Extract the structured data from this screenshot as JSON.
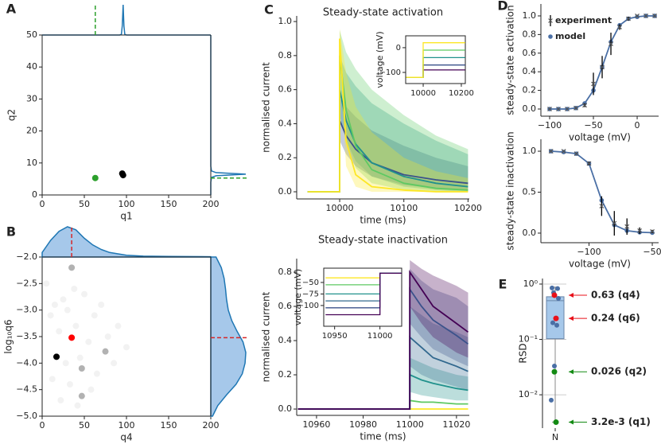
{
  "chart_data": [
    {
      "type": "scatter",
      "panel_label": "A",
      "xlabel": "q1",
      "ylabel": "q2",
      "xlim": [
        0,
        200
      ],
      "ylim": [
        0,
        50
      ],
      "xticks": [
        0,
        50,
        100,
        150,
        200
      ],
      "yticks": [
        0,
        10,
        20,
        30,
        40,
        50
      ],
      "series": [
        {
          "color": "#2ca02c",
          "opacity": 1,
          "x": [
            63
          ],
          "values": [
            5.3
          ]
        },
        {
          "color": "#000000",
          "opacity": 1,
          "x": [
            95,
            96
          ],
          "values": [
            6.7,
            6.2
          ]
        }
      ],
      "reference_x": 63,
      "reference_y": 5.3,
      "reference_color": "#2ca02c",
      "density_color": "#1f77b4",
      "density_fill": false,
      "top_density": {
        "x": [
          0,
          92,
          94,
          95,
          96,
          97,
          98,
          100,
          200
        ],
        "values": [
          0,
          0,
          0.02,
          0.3,
          1,
          0.3,
          0.02,
          0,
          0
        ],
        "lim": [
          0,
          1
        ]
      },
      "right_density": {
        "y": [
          0,
          4,
          5.5,
          6,
          6.5,
          7,
          7.5,
          9,
          50
        ],
        "values": [
          0,
          0,
          0.02,
          0.15,
          1,
          0.15,
          0.02,
          0,
          0
        ],
        "lim": [
          0,
          1
        ]
      }
    },
    {
      "type": "scatter",
      "panel_label": "B",
      "xlabel": "q4",
      "ylabel": "log₁₀q6",
      "xlim": [
        0,
        200
      ],
      "ylim": [
        -5,
        -2
      ],
      "xticks": [
        0,
        50,
        100,
        150,
        200
      ],
      "yticks": [
        {
          "value": -5,
          "label": "−5.0"
        },
        {
          "value": -4.5,
          "label": "−4.5"
        },
        {
          "value": -4,
          "label": "−4.0"
        },
        {
          "value": -3.5,
          "label": "−3.5"
        },
        {
          "value": -3,
          "label": "−3.0"
        },
        {
          "value": -2.5,
          "label": "−2.5"
        },
        {
          "value": -2,
          "label": "−2.0"
        }
      ],
      "series": [
        {
          "color": "#000000",
          "opacity": 0.05,
          "x": [
            5,
            10,
            12,
            15,
            20,
            22,
            25,
            28,
            30,
            33,
            38,
            40,
            42,
            45,
            50,
            55,
            58,
            62,
            65,
            70,
            78,
            85,
            90,
            100
          ],
          "values": [
            -2.5,
            -3.1,
            -4.3,
            -2.9,
            -3.4,
            -4.7,
            -2.8,
            -4.0,
            -3.0,
            -4.4,
            -2.6,
            -3.3,
            -4.8,
            -3.9,
            -2.7,
            -3.6,
            -4.5,
            -3.1,
            -4.2,
            -2.9,
            -3.5,
            -4.0,
            -3.3,
            -3.7
          ]
        },
        {
          "color": "#000000",
          "opacity": 0.3,
          "x": [
            35,
            75,
            47,
            47
          ],
          "values": [
            -2.2,
            -3.78,
            -4.62,
            -4.1
          ]
        },
        {
          "color": "#000000",
          "opacity": 1,
          "x": [
            17
          ],
          "values": [
            -3.88
          ]
        },
        {
          "color": "#ff0000",
          "opacity": 1,
          "x": [
            35
          ],
          "values": [
            -3.52
          ]
        }
      ],
      "reference_x": 35,
      "reference_y": -3.52,
      "reference_color": "#d62728",
      "density_color": "#1f77b4",
      "density_fill": true,
      "density_fill_color": "#a6c8ea",
      "top_density": {
        "x": [
          0,
          10,
          20,
          30,
          40,
          50,
          60,
          70,
          80,
          100,
          120,
          150,
          200
        ],
        "values": [
          0.15,
          0.55,
          0.85,
          1.0,
          0.9,
          0.62,
          0.4,
          0.25,
          0.15,
          0.06,
          0.03,
          0.02,
          0.01
        ],
        "lim": [
          0,
          1
        ]
      },
      "right_density": {
        "y": [
          -5,
          -4.8,
          -4.6,
          -4.4,
          -4.2,
          -4.0,
          -3.8,
          -3.6,
          -3.4,
          -3.2,
          -3.0,
          -2.8,
          -2.6,
          -2.4,
          -2.2,
          -2.0
        ],
        "values": [
          0.05,
          0.2,
          0.45,
          0.72,
          0.9,
          0.98,
          1.0,
          0.92,
          0.75,
          0.6,
          0.5,
          0.45,
          0.42,
          0.38,
          0.3,
          0.15
        ],
        "lim": [
          0,
          1
        ]
      }
    },
    {
      "type": "line",
      "panel_label": "C",
      "title": "Steady-state activation",
      "xlabel": "time (ms)",
      "ylabel": "normalised current",
      "xlim": [
        9933,
        10202
      ],
      "ylim": [
        -0.042,
        1.033
      ],
      "xticks": [
        10000,
        10100,
        10200
      ],
      "yticks": [
        {
          "value": 0,
          "label": "0.0"
        },
        0.2,
        0.4,
        0.6,
        0.8,
        {
          "value": 1,
          "label": "1.0"
        }
      ],
      "x": [
        9950,
        10000,
        10000,
        10010,
        10025,
        10050,
        10100,
        10150,
        10200
      ],
      "series": [
        {
          "color": "#3b528b",
          "values": [
            0,
            0,
            0.42,
            0.33,
            0.25,
            0.17,
            0.1,
            0.07,
            0.05
          ],
          "lower": [
            0,
            0,
            0.3,
            0.22,
            0.15,
            0.09,
            0.04,
            0.02,
            0.01
          ],
          "upper": [
            0,
            0,
            0.55,
            0.5,
            0.44,
            0.36,
            0.27,
            0.2,
            0.15
          ]
        },
        {
          "color": "#21918c",
          "values": [
            0,
            0,
            0.6,
            0.42,
            0.28,
            0.17,
            0.09,
            0.05,
            0.03
          ],
          "lower": [
            0,
            0,
            0.45,
            0.3,
            0.18,
            0.09,
            0.03,
            0.01,
            0
          ],
          "upper": [
            0,
            0,
            0.8,
            0.7,
            0.62,
            0.52,
            0.4,
            0.3,
            0.22
          ]
        },
        {
          "color": "#5ec962",
          "values": [
            0,
            0,
            0.8,
            0.48,
            0.27,
            0.13,
            0.05,
            0.02,
            0.01
          ],
          "lower": [
            0,
            0,
            0.6,
            0.3,
            0.14,
            0.05,
            0.01,
            0,
            0
          ],
          "upper": [
            0,
            0,
            0.95,
            0.82,
            0.72,
            0.6,
            0.45,
            0.33,
            0.25
          ]
        },
        {
          "color": "#fde725",
          "values": [
            0,
            0,
            0.9,
            0.3,
            0.1,
            0.03,
            0.01,
            0,
            0
          ],
          "lower": [
            0,
            0,
            0.75,
            0.15,
            0.03,
            0,
            0,
            0,
            0
          ],
          "upper": [
            0,
            0,
            0.96,
            0.7,
            0.5,
            0.35,
            0.2,
            0.12,
            0.08
          ]
        }
      ],
      "inset": {
        "ylabel": "voltage (mV)",
        "xlim": [
          9908,
          10221
        ],
        "ylim": [
          -145,
          48
        ],
        "xticks": [
          10000,
          10200
        ],
        "yticks": [
          {
            "value": -100,
            "label": "−100"
          },
          0
        ],
        "x": [
          9910,
          10000,
          10000,
          10220
        ],
        "series": [
          {
            "color": "#440154",
            "values": [
              -120,
              -120,
              -90,
              -90
            ]
          },
          {
            "color": "#3b528b",
            "values": [
              -120,
              -120,
              -70,
              -70
            ]
          },
          {
            "color": "#21918c",
            "values": [
              -120,
              -120,
              -40,
              -40
            ]
          },
          {
            "color": "#5ec962",
            "values": [
              -120,
              -120,
              -10,
              -10
            ]
          },
          {
            "color": "#fde725",
            "values": [
              -120,
              -120,
              20,
              20
            ]
          }
        ]
      }
    },
    {
      "type": "line",
      "title": "Steady-state inactivation",
      "xlabel": "time (ms)",
      "ylabel": "normalised current",
      "xlim": [
        10951.5,
        11025.5
      ],
      "ylim": [
        -0.037,
        0.879
      ],
      "xticks": [
        10960,
        10980,
        11000,
        11020
      ],
      "yticks": [
        {
          "value": 0,
          "label": "0.0"
        },
        0.2,
        0.4,
        0.6,
        0.8
      ],
      "x": [
        10952,
        11000,
        11000,
        11005,
        11010,
        11020,
        11025
      ],
      "series": [
        {
          "color": "#fde725",
          "values": [
            0,
            0,
            0,
            0,
            0,
            0,
            0
          ]
        },
        {
          "color": "#5ec962",
          "values": [
            0,
            0,
            0.05,
            0.04,
            0.04,
            0.03,
            0.03
          ]
        },
        {
          "color": "#21918c",
          "values": [
            0,
            0,
            0.2,
            0.17,
            0.15,
            0.12,
            0.11
          ],
          "lower": [
            0,
            0,
            0.1,
            0.08,
            0.07,
            0.05,
            0.05
          ],
          "upper": [
            0,
            0,
            0.3,
            0.27,
            0.24,
            0.2,
            0.19
          ]
        },
        {
          "color": "#31688e",
          "values": [
            0,
            0,
            0.42,
            0.36,
            0.3,
            0.25,
            0.22
          ],
          "lower": [
            0,
            0,
            0.25,
            0.2,
            0.17,
            0.13,
            0.11
          ],
          "upper": [
            0,
            0,
            0.6,
            0.55,
            0.5,
            0.45,
            0.42
          ]
        },
        {
          "color": "#3b528b",
          "values": [
            0,
            0,
            0.7,
            0.6,
            0.52,
            0.43,
            0.38
          ],
          "lower": [
            0,
            0,
            0.5,
            0.42,
            0.35,
            0.28,
            0.25
          ],
          "upper": [
            0,
            0,
            0.82,
            0.75,
            0.7,
            0.65,
            0.6
          ]
        },
        {
          "color": "#440154",
          "values": [
            0,
            0,
            0.8,
            0.7,
            0.6,
            0.5,
            0.45
          ],
          "lower": [
            0,
            0,
            0.6,
            0.5,
            0.42,
            0.33,
            0.3
          ],
          "upper": [
            0,
            0,
            0.87,
            0.82,
            0.78,
            0.72,
            0.68
          ]
        }
      ],
      "inset": {
        "ylabel": "voltage (mV)",
        "xlim": [
          10938,
          11024
        ],
        "ylim": [
          -145,
          -19
        ],
        "xticks": [
          10950,
          11000
        ],
        "yticks": [
          {
            "value": -100,
            "label": "−100"
          },
          {
            "value": -75,
            "label": "−75"
          },
          {
            "value": -50,
            "label": "−50"
          }
        ],
        "x": [
          10940,
          11000,
          11000,
          11024
        ],
        "series": [
          {
            "color": "#fde725",
            "values": [
              -40,
              -40,
              -30,
              -30
            ]
          },
          {
            "color": "#5ec962",
            "values": [
              -55,
              -55,
              -30,
              -30
            ]
          },
          {
            "color": "#21918c",
            "values": [
              -75,
              -75,
              -30,
              -30
            ]
          },
          {
            "color": "#31688e",
            "values": [
              -90,
              -90,
              -30,
              -30
            ]
          },
          {
            "color": "#3b528b",
            "values": [
              -105,
              -105,
              -30,
              -30
            ]
          },
          {
            "color": "#440154",
            "values": [
              -120,
              -120,
              -30,
              -30
            ]
          }
        ]
      }
    },
    {
      "type": "errorbar",
      "panel_label": "D",
      "xlabel": "voltage (mV)",
      "ylabel": "steady-state activation",
      "xlim": [
        -110,
        24.5
      ],
      "ylim": [
        -0.077,
        1.128
      ],
      "xticks": [
        {
          "value": -100,
          "label": "−100"
        },
        {
          "value": -50,
          "label": "−50"
        },
        0
      ],
      "yticks": [
        {
          "value": 0,
          "label": "0.0"
        },
        0.2,
        0.4,
        0.6,
        0.8,
        {
          "value": 1,
          "label": "1.0"
        }
      ],
      "legend": "upper left",
      "series": [
        {
          "name": "experiment",
          "color": "#000000",
          "x": [
            -100,
            -90,
            -80,
            -70,
            -60,
            -50,
            -40,
            -30,
            -20,
            -10,
            0,
            10,
            20
          ],
          "values": [
            0,
            0,
            0,
            0.01,
            0.04,
            0.27,
            0.45,
            0.7,
            0.88,
            0.97,
            1.0,
            1.0,
            1.0
          ],
          "errors": [
            0,
            0,
            0,
            0.01,
            0.02,
            0.12,
            0.12,
            0.12,
            0.03,
            0.02,
            0.01,
            0,
            0
          ]
        },
        {
          "name": "model",
          "color": "#4a6fa5",
          "x": [
            -100,
            -90,
            -80,
            -70,
            -60,
            -50,
            -40,
            -30,
            -20,
            -10,
            0,
            10,
            20
          ],
          "values": [
            0,
            0,
            0,
            0.01,
            0.06,
            0.2,
            0.45,
            0.72,
            0.9,
            0.97,
            0.99,
            1.0,
            1.0
          ]
        }
      ]
    },
    {
      "type": "errorbar",
      "xlabel": "voltage (mV)",
      "ylabel": "steady-state inactivation",
      "xlim": [
        -138,
        -45
      ],
      "ylim": [
        -0.117,
        1.146
      ],
      "xticks": [
        {
          "value": -100,
          "label": "−100"
        },
        {
          "value": -50,
          "label": "−50"
        }
      ],
      "yticks": [
        {
          "value": 0,
          "label": "0.0"
        },
        0.5,
        {
          "value": 1,
          "label": "1.0"
        }
      ],
      "series": [
        {
          "name": "experiment",
          "color": "#000000",
          "x": [
            -130,
            -120,
            -110,
            -100,
            -90,
            -80,
            -70,
            -60,
            -50
          ],
          "values": [
            1.0,
            1.0,
            0.97,
            0.85,
            0.33,
            0.12,
            0.08,
            0.03,
            0.02
          ],
          "errors": [
            0,
            0,
            0.01,
            0.02,
            0.12,
            0.15,
            0.1,
            0.04,
            0.02
          ]
        },
        {
          "name": "model",
          "color": "#4a6fa5",
          "x": [
            -130,
            -120,
            -110,
            -100,
            -90,
            -80,
            -70,
            -60,
            -50
          ],
          "values": [
            1.0,
            0.99,
            0.97,
            0.85,
            0.4,
            0.1,
            0.03,
            0.01,
            0.005
          ]
        }
      ]
    },
    {
      "type": "box",
      "panel_label": "E",
      "ylabel": "RSD",
      "log_scale": true,
      "grid": true,
      "ylim": [
        0.0025,
        1.26
      ],
      "yticks": [
        {
          "value": 1,
          "label": "10⁰"
        },
        {
          "value": 0.1,
          "label": "10⁻¹"
        },
        {
          "value": 0.01,
          "label": "10⁻²"
        }
      ],
      "categories": [
        "N"
      ],
      "box_color": "#a6c8ea",
      "box_edge_color": "#6a86a8",
      "box": {
        "whislo": 0.0032,
        "q1": 0.103,
        "med": 0.5,
        "q3": 0.59,
        "whishi": 0.88
      },
      "points": {
        "color": "#4a6fa5",
        "values": [
          0.85,
          0.83,
          0.7,
          0.55,
          0.2,
          0.18,
          0.033,
          0.008
        ]
      },
      "highlights": [
        {
          "value": 0.63,
          "label": "0.63 (q4)",
          "color": "#e8101a"
        },
        {
          "value": 0.24,
          "label": "0.24 (q6)",
          "color": "#e8101a"
        },
        {
          "value": 0.026,
          "label": "0.026 (q2)",
          "color": "#138a13"
        },
        {
          "value": 0.0032,
          "label": "3.2e-3 (q1)",
          "color": "#138a13"
        }
      ]
    }
  ]
}
